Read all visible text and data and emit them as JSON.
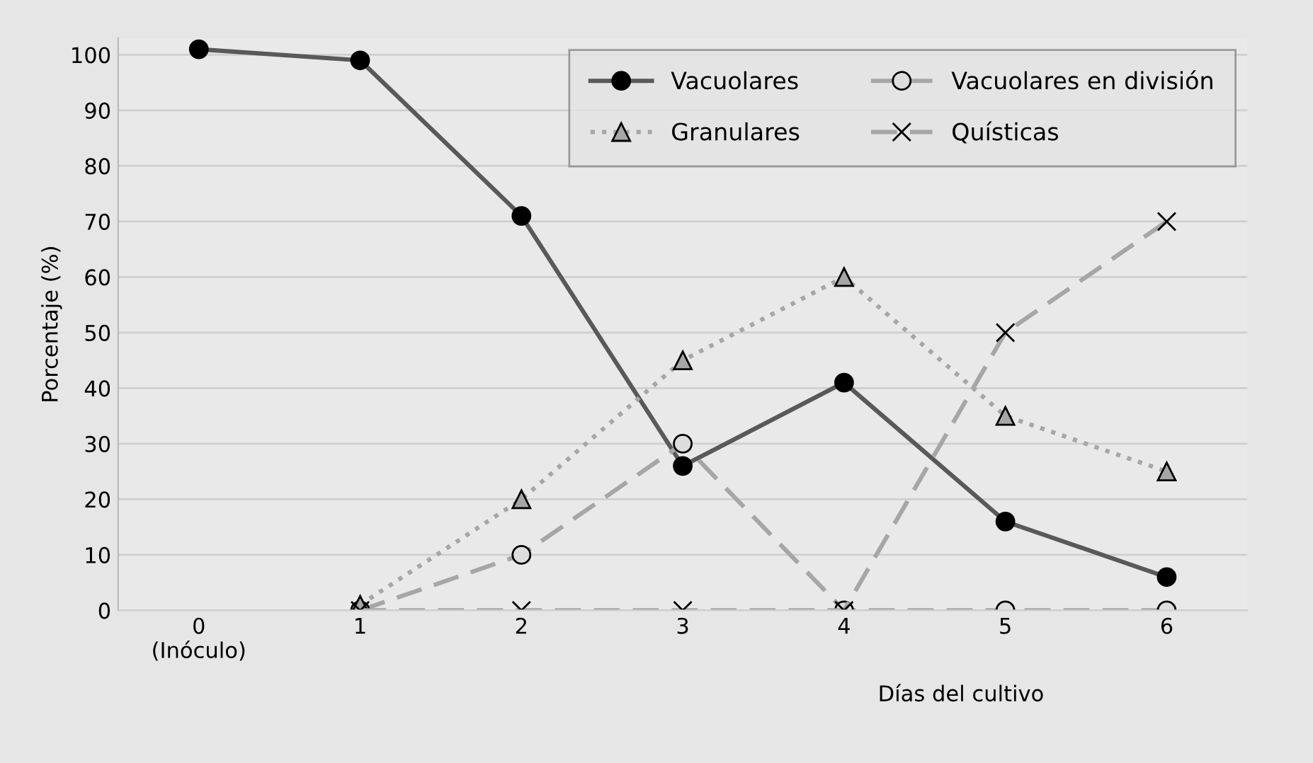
{
  "chart_data": {
    "type": "line",
    "ylabel": "Porcentaje (%)",
    "xlabel": "Días del cultivo",
    "categories": [
      "0\n(Inóculo)",
      "1",
      "2",
      "3",
      "4",
      "5",
      "6"
    ],
    "ylim": [
      0,
      103
    ],
    "yticks": [
      0,
      10,
      20,
      30,
      40,
      50,
      60,
      70,
      80,
      90,
      100
    ],
    "grid": "y",
    "legend": "top right",
    "series": [
      {
        "name": "Vacuolares",
        "color": "#595959",
        "marker": "circle",
        "line_style": "solid",
        "values": [
          101,
          99,
          71,
          26,
          41,
          16,
          6
        ]
      },
      {
        "name": "Vacuolares en división",
        "color": "#a6a6a6",
        "marker": "circle",
        "line_style": "dashed",
        "values": [
          null,
          0,
          10,
          30,
          0,
          0,
          0
        ]
      },
      {
        "name": "Granulares",
        "color": "#a6a6a6",
        "marker": "triangle",
        "line_style": "dotted",
        "values": [
          null,
          1,
          20,
          45,
          60,
          35,
          25
        ]
      },
      {
        "name": "Quísticas",
        "color": "#a6a6a6",
        "marker": "cross",
        "line_style": "dashed",
        "values": [
          null,
          0,
          0,
          0,
          0,
          50,
          70
        ]
      }
    ]
  }
}
